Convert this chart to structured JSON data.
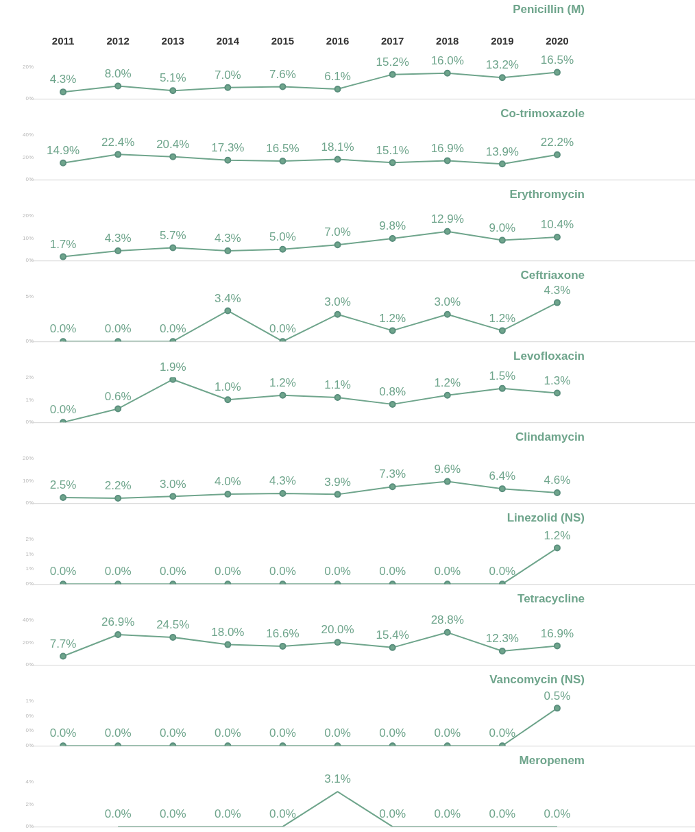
{
  "chart_data": [
    {
      "type": "line",
      "title": "Penicillin (M)",
      "categories": [
        "2011",
        "2012",
        "2013",
        "2014",
        "2015",
        "2016",
        "2017",
        "2018",
        "2019",
        "2020"
      ],
      "series": [
        {
          "color": "#6fa58c",
          "values": [
            4.3,
            8.0,
            5.1,
            7.0,
            7.6,
            6.1,
            15.2,
            16.0,
            13.2,
            16.5
          ],
          "value_labels": [
            "4.3%",
            "8.0%",
            "5.1%",
            "7.0%",
            "7.6%",
            "6.1%",
            "15.2%",
            "16.0%",
            "13.2%",
            "16.5%"
          ]
        }
      ],
      "ylim": [
        0,
        20
      ],
      "yticks": [
        {
          "value": 0,
          "label": "0%"
        },
        {
          "value": 20,
          "label": "20%"
        }
      ],
      "marker": "circle"
    },
    {
      "type": "line",
      "title": "Co-trimoxazole",
      "categories": [
        "2011",
        "2012",
        "2013",
        "2014",
        "2015",
        "2016",
        "2017",
        "2018",
        "2019",
        "2020"
      ],
      "series": [
        {
          "color": "#6fa58c",
          "values": [
            14.9,
            22.4,
            20.4,
            17.3,
            16.5,
            18.1,
            15.1,
            16.9,
            13.9,
            22.2
          ],
          "value_labels": [
            "14.9%",
            "22.4%",
            "20.4%",
            "17.3%",
            "16.5%",
            "18.1%",
            "15.1%",
            "16.9%",
            "13.9%",
            "22.2%"
          ]
        }
      ],
      "ylim": [
        0,
        40
      ],
      "yticks": [
        {
          "value": 0,
          "label": "0%"
        },
        {
          "value": 20,
          "label": "20%"
        },
        {
          "value": 40,
          "label": "40%"
        }
      ],
      "marker": "circle",
      "tick_labels": "y"
    },
    {
      "type": "line",
      "title": "Erythromycin",
      "categories": [
        "2011",
        "2012",
        "2013",
        "2014",
        "2015",
        "2016",
        "2017",
        "2018",
        "2019",
        "2020"
      ],
      "series": [
        {
          "color": "#6fa58c",
          "values": [
            1.7,
            4.3,
            5.7,
            4.3,
            5.0,
            7.0,
            9.8,
            12.9,
            9.0,
            10.4
          ],
          "value_labels": [
            "1.7%",
            "4.3%",
            "5.7%",
            "4.3%",
            "5.0%",
            "7.0%",
            "9.8%",
            "12.9%",
            "9.0%",
            "10.4%"
          ]
        }
      ],
      "ylim": [
        0,
        20
      ],
      "yticks": [
        {
          "value": 0,
          "label": "0%"
        },
        {
          "value": 10,
          "label": "10%"
        },
        {
          "value": 20,
          "label": "20%"
        }
      ],
      "marker": "circle",
      "tick_labels": "y"
    },
    {
      "type": "line",
      "title": "Ceftriaxone",
      "categories": [
        "2011",
        "2012",
        "2013",
        "2014",
        "2015",
        "2016",
        "2017",
        "2018",
        "2019",
        "2020"
      ],
      "series": [
        {
          "color": "#6fa58c",
          "values": [
            0.0,
            0.0,
            0.0,
            3.4,
            0.0,
            3.0,
            1.2,
            3.0,
            1.2,
            4.3
          ],
          "value_labels": [
            "0.0%",
            "0.0%",
            "0.0%",
            "3.4%",
            "0.0%",
            "3.0%",
            "1.2%",
            "3.0%",
            "1.2%",
            "4.3%"
          ]
        }
      ],
      "ylim": [
        0,
        5
      ],
      "yticks": [
        {
          "value": 0,
          "label": "0%"
        },
        {
          "value": 5,
          "label": "5%"
        }
      ],
      "marker": "circle",
      "tick_labels": "y"
    },
    {
      "type": "line",
      "title": "Levofloxacin",
      "categories": [
        "2011",
        "2012",
        "2013",
        "2014",
        "2015",
        "2016",
        "2017",
        "2018",
        "2019",
        "2020"
      ],
      "series": [
        {
          "color": "#6fa58c",
          "values": [
            0.0,
            0.6,
            1.9,
            1.0,
            1.2,
            1.1,
            0.8,
            1.2,
            1.5,
            1.3
          ],
          "value_labels": [
            "0.0%",
            "0.6%",
            "1.9%",
            "1.0%",
            "1.2%",
            "1.1%",
            "0.8%",
            "1.2%",
            "1.5%",
            "1.3%"
          ]
        }
      ],
      "ylim": [
        0,
        2
      ],
      "yticks": [
        {
          "value": 0,
          "label": "0%"
        },
        {
          "value": 1,
          "label": "1%"
        },
        {
          "value": 2,
          "label": "2%"
        }
      ],
      "marker": "circle",
      "tick_labels": "y"
    },
    {
      "type": "line",
      "title": "Clindamycin",
      "categories": [
        "2011",
        "2012",
        "2013",
        "2014",
        "2015",
        "2016",
        "2017",
        "2018",
        "2019",
        "2020"
      ],
      "series": [
        {
          "color": "#6fa58c",
          "values": [
            2.5,
            2.2,
            3.0,
            4.0,
            4.3,
            3.9,
            7.3,
            9.6,
            6.4,
            4.6
          ],
          "value_labels": [
            "2.5%",
            "2.2%",
            "3.0%",
            "4.0%",
            "4.3%",
            "3.9%",
            "7.3%",
            "9.6%",
            "6.4%",
            "4.6%"
          ]
        }
      ],
      "ylim": [
        0,
        20
      ],
      "yticks": [
        {
          "value": 0,
          "label": "0%"
        },
        {
          "value": 10,
          "label": "10%"
        },
        {
          "value": 20,
          "label": "20%"
        }
      ],
      "marker": "circle",
      "tick_labels": "y"
    },
    {
      "type": "line",
      "title": "Linezolid (NS)",
      "categories": [
        "2011",
        "2012",
        "2013",
        "2014",
        "2015",
        "2016",
        "2017",
        "2018",
        "2019",
        "2020"
      ],
      "series": [
        {
          "color": "#6fa58c",
          "values": [
            0.0,
            0.0,
            0.0,
            0.0,
            0.0,
            0.0,
            0.0,
            0.0,
            0.0,
            1.2
          ],
          "value_labels": [
            "0.0%",
            "0.0%",
            "0.0%",
            "0.0%",
            "0.0%",
            "0.0%",
            "0.0%",
            "0.0%",
            "0.0%",
            "1.2%"
          ]
        }
      ],
      "ylim": [
        0,
        1.5
      ],
      "yticks": [
        {
          "value": 0,
          "label": "0%"
        },
        {
          "value": 0.5,
          "label": "1%"
        },
        {
          "value": 1,
          "label": "1%"
        },
        {
          "value": 1.5,
          "label": "2%"
        }
      ],
      "marker": "circle",
      "tick_labels": "y"
    },
    {
      "type": "line",
      "title": "Tetracycline",
      "categories": [
        "2011",
        "2012",
        "2013",
        "2014",
        "2015",
        "2016",
        "2017",
        "2018",
        "2019",
        "2020"
      ],
      "series": [
        {
          "color": "#6fa58c",
          "values": [
            7.7,
            26.9,
            24.5,
            18.0,
            16.6,
            20.0,
            15.4,
            28.8,
            12.3,
            16.9
          ],
          "value_labels": [
            "7.7%",
            "26.9%",
            "24.5%",
            "18.0%",
            "16.6%",
            "20.0%",
            "15.4%",
            "28.8%",
            "12.3%",
            "16.9%"
          ]
        }
      ],
      "ylim": [
        0,
        40
      ],
      "yticks": [
        {
          "value": 0,
          "label": "0%"
        },
        {
          "value": 20,
          "label": "20%"
        },
        {
          "value": 40,
          "label": "40%"
        }
      ],
      "marker": "circle",
      "tick_labels": "y"
    },
    {
      "type": "line",
      "title": "Vancomycin (NS)",
      "categories": [
        "2011",
        "2012",
        "2013",
        "2014",
        "2015",
        "2016",
        "2017",
        "2018",
        "2019",
        "2020"
      ],
      "series": [
        {
          "color": "#6fa58c",
          "values": [
            0.0,
            0.0,
            0.0,
            0.0,
            0.0,
            0.0,
            0.0,
            0.0,
            0.0,
            0.5
          ],
          "value_labels": [
            "0.0%",
            "0.0%",
            "0.0%",
            "0.0%",
            "0.0%",
            "0.0%",
            "0.0%",
            "0.0%",
            "0.0%",
            "0.5%"
          ]
        }
      ],
      "ylim": [
        0,
        0.6
      ],
      "yticks": [
        {
          "value": 0,
          "label": "0%"
        },
        {
          "value": 0.2,
          "label": "0%"
        },
        {
          "value": 0.4,
          "label": "0%"
        },
        {
          "value": 0.6,
          "label": "1%"
        }
      ],
      "marker": "circle",
      "tick_labels": "y"
    },
    {
      "type": "line",
      "title": "Meropenem",
      "categories": [
        "2011",
        "2012",
        "2013",
        "2014",
        "2015",
        "2016",
        "2017",
        "2018",
        "2019",
        "2020"
      ],
      "series": [
        {
          "color": "#6fa58c",
          "values": [
            null,
            0.0,
            0.0,
            0.0,
            0.0,
            3.1,
            0.0,
            0.0,
            0.0,
            0.0
          ],
          "value_labels": [
            null,
            "0.0%",
            "0.0%",
            "0.0%",
            "0.0%",
            "3.1%",
            "0.0%",
            "0.0%",
            "0.0%",
            "0.0%"
          ]
        }
      ],
      "ylim": [
        0,
        4
      ],
      "yticks": [
        {
          "value": 0,
          "label": "0%"
        },
        {
          "value": 2,
          "label": "2%"
        },
        {
          "value": 4,
          "label": "4%"
        }
      ],
      "marker": "none",
      "tick_labels": "y"
    }
  ]
}
